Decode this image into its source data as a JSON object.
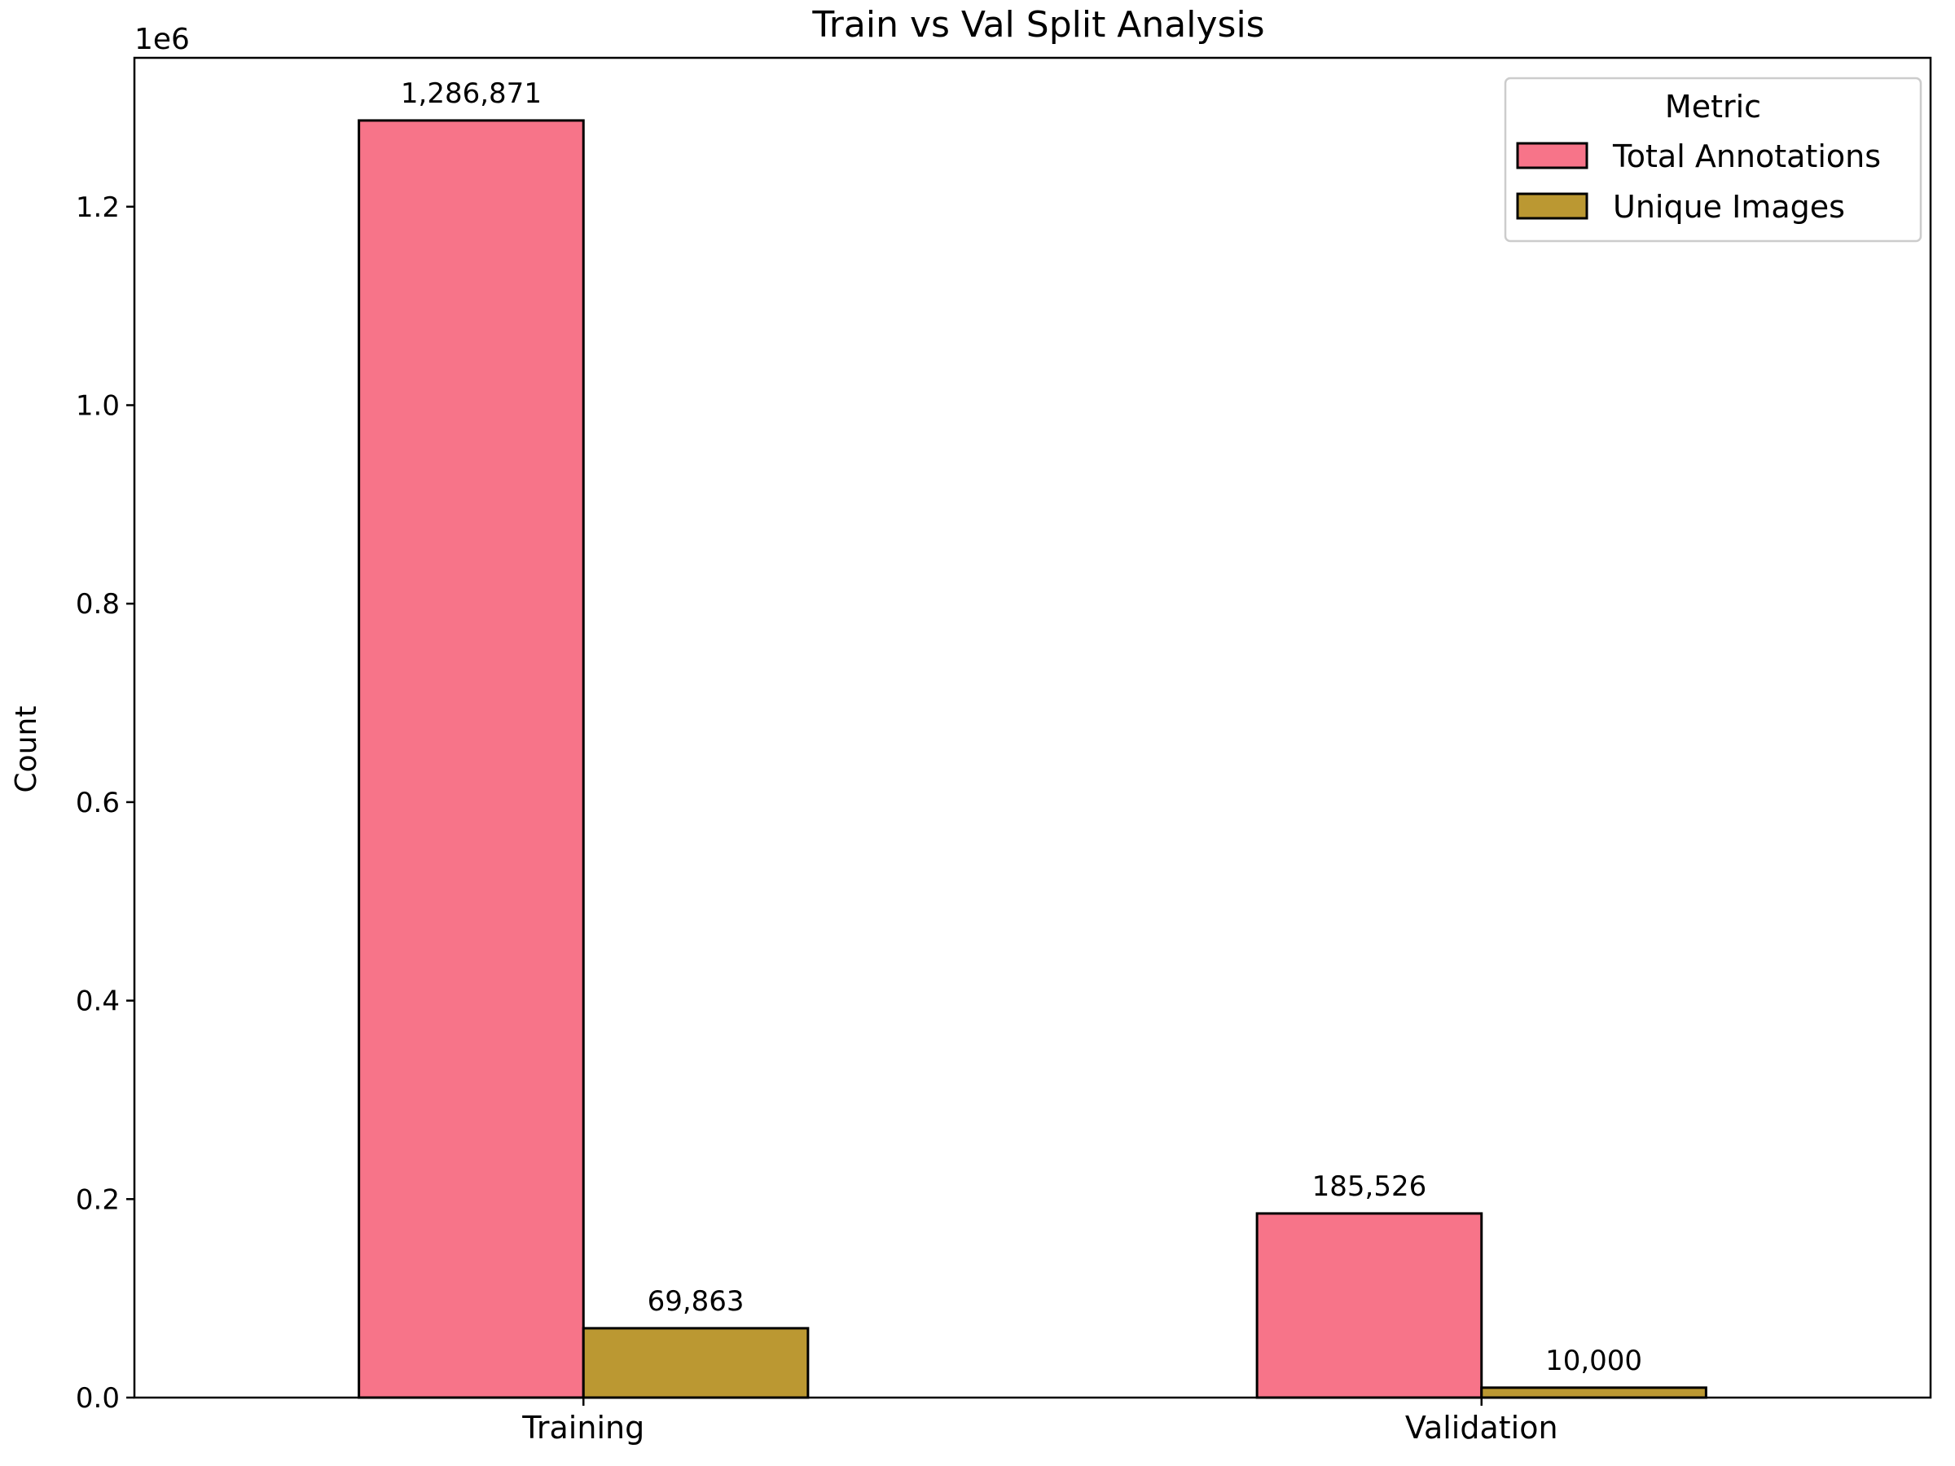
{
  "chart_data": {
    "type": "bar",
    "title": "Train vs Val Split Analysis",
    "xlabel": "",
    "ylabel": "Count",
    "y_scale_label": "1e6",
    "categories": [
      "Training",
      "Validation"
    ],
    "series": [
      {
        "name": "Total Annotations",
        "values": [
          1286871,
          185526
        ],
        "labels": [
          "1,286,871",
          "185,526"
        ],
        "color": "#f77489"
      },
      {
        "name": "Unique Images",
        "values": [
          69863,
          10000
        ],
        "labels": [
          "69,863",
          "10,000"
        ],
        "color": "#bb9832"
      }
    ],
    "ylim": [
      0,
      1350000
    ],
    "yticks": [
      0,
      200000,
      400000,
      600000,
      800000,
      1000000,
      1200000
    ],
    "ytick_labels": [
      "0.0",
      "0.2",
      "0.4",
      "0.6",
      "0.8",
      "1.0",
      "1.2"
    ],
    "grid": false,
    "legend": {
      "title": "Metric",
      "position": "top-right"
    }
  }
}
